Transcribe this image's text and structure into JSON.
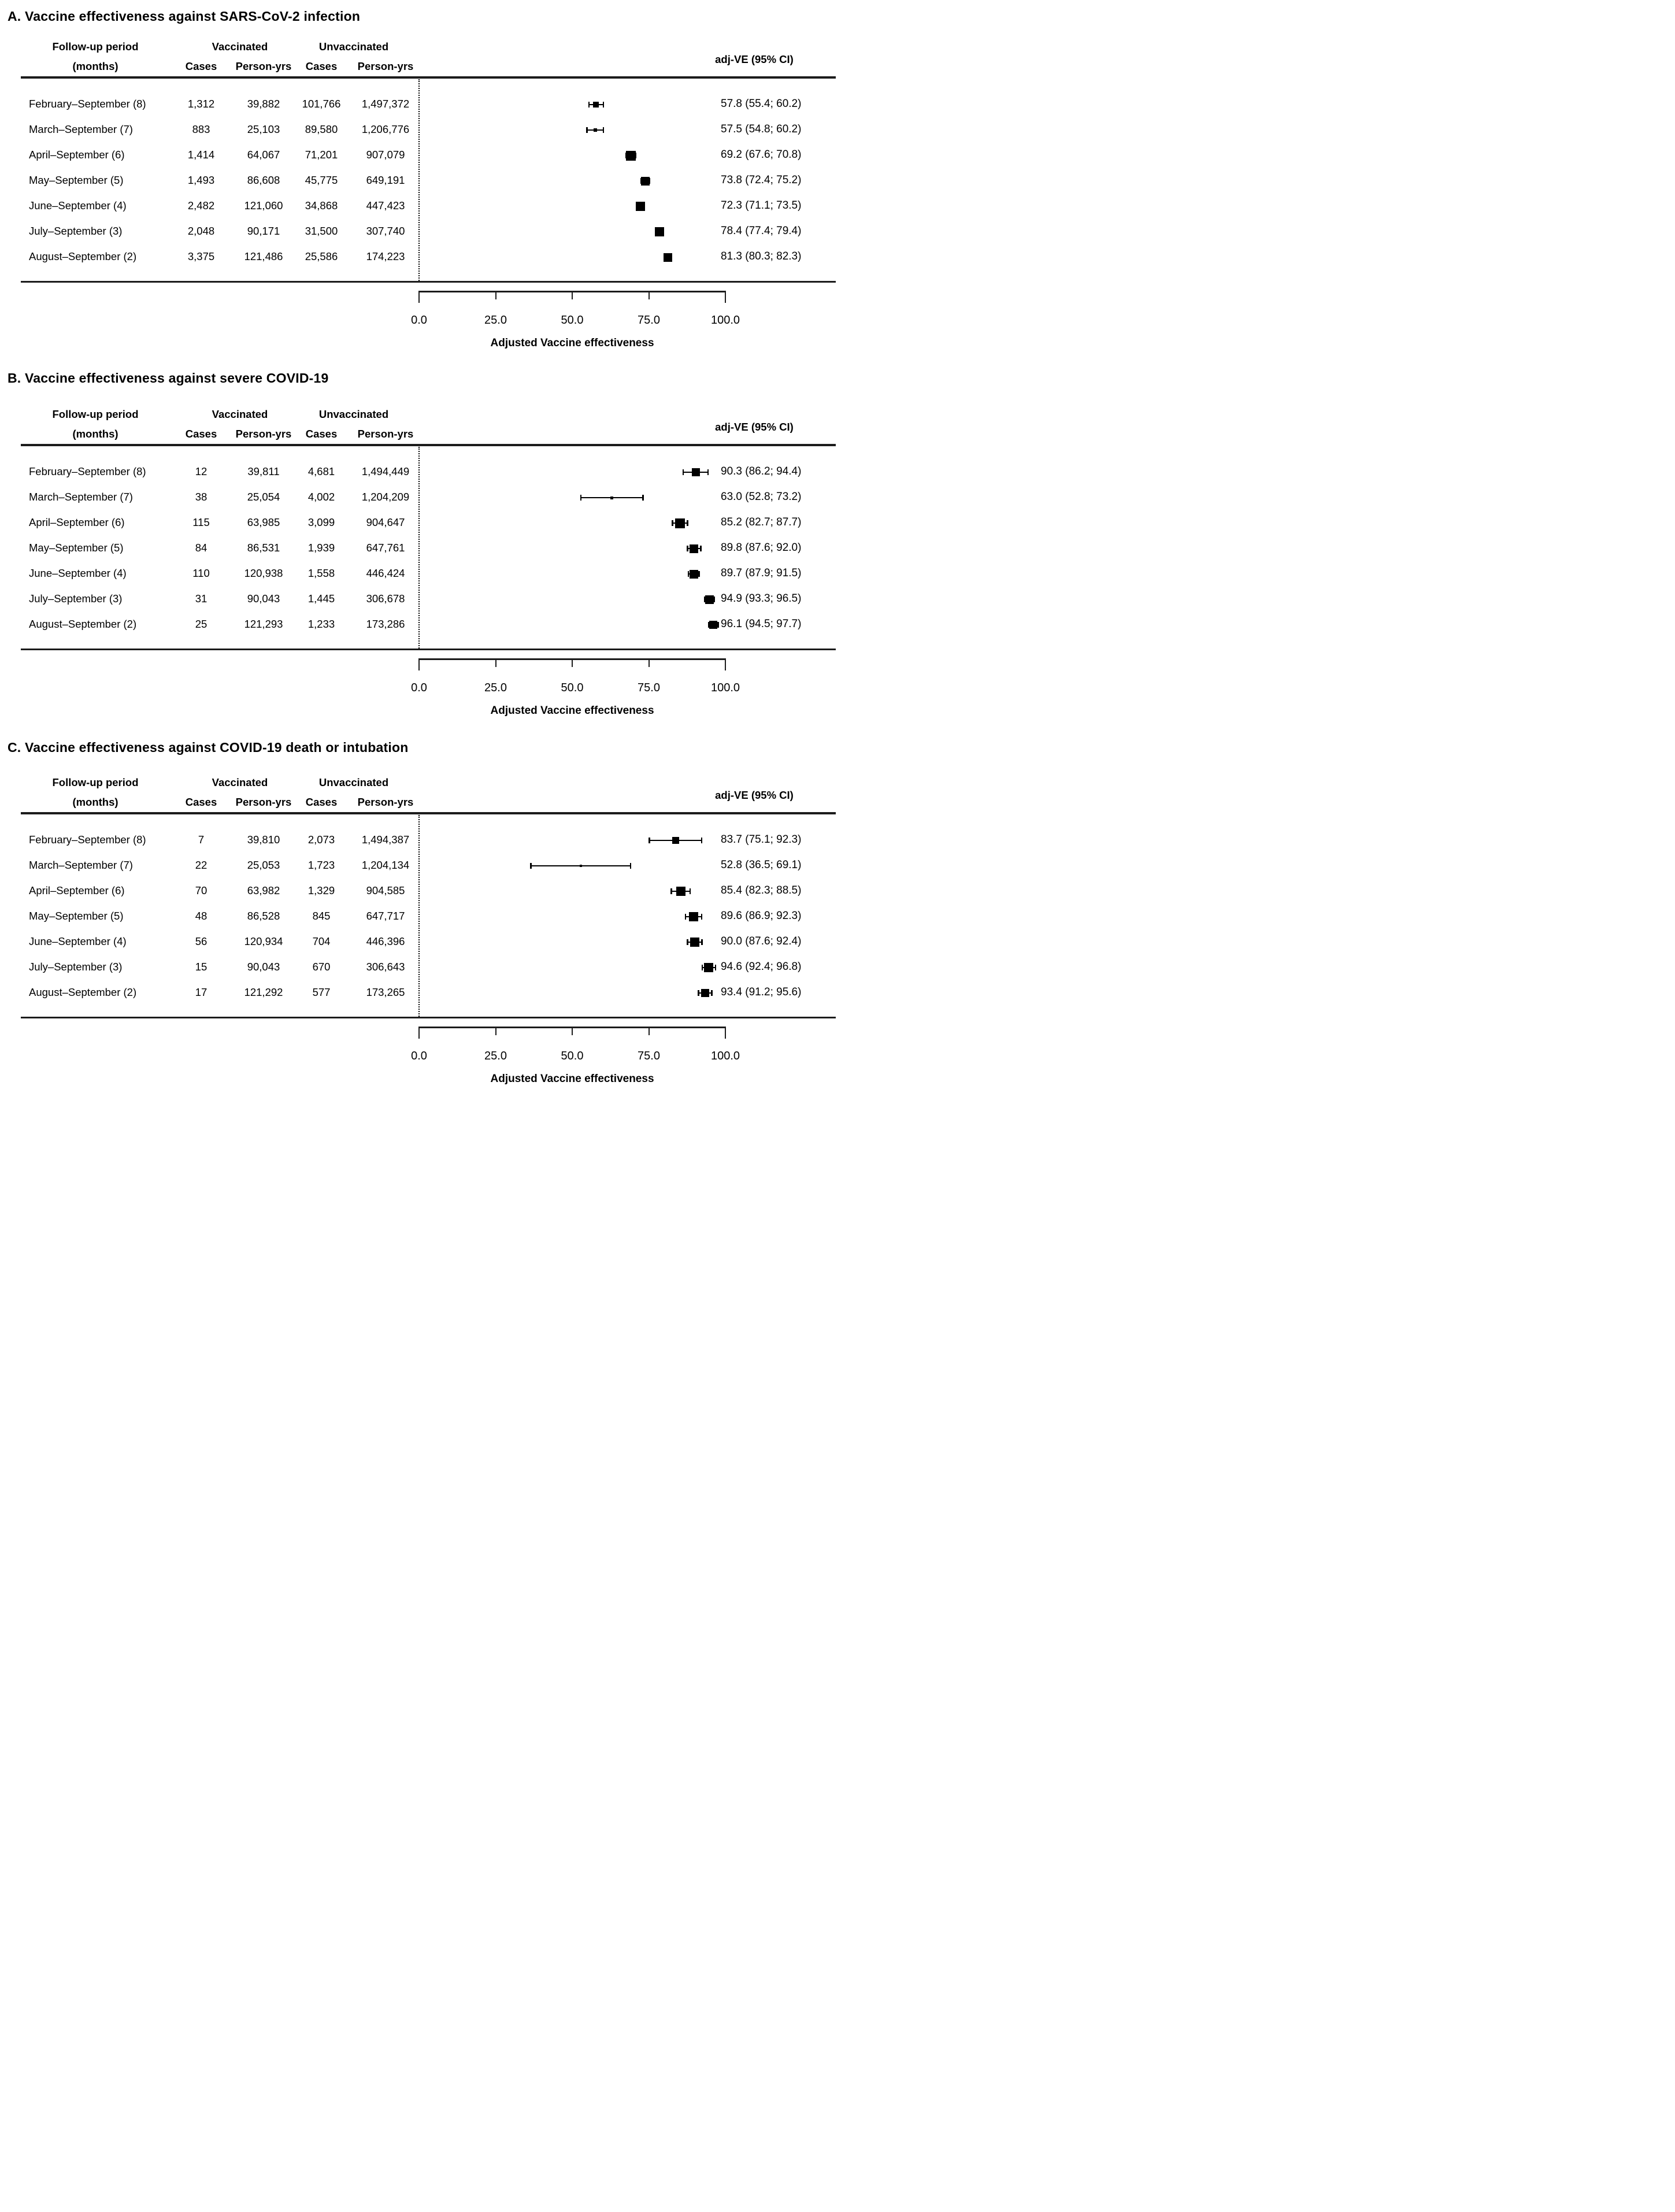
{
  "figure": {
    "background": "#ffffff",
    "ink_color": "#000000",
    "headers": {
      "followup_line1": "Follow-up period",
      "followup_line2": "(months)",
      "vaccinated_group": "Vaccinated",
      "unvaccinated_group": "Unvaccinated",
      "cases": "Cases",
      "person_yrs": "Person-yrs",
      "adj_ve": "adj-VE  (95% CI)"
    },
    "axis": {
      "min": 0,
      "max": 100,
      "tick_values": [
        0,
        25,
        50,
        75,
        100
      ],
      "tick_labels": [
        "0.0",
        "25.0",
        "50.0",
        "75.0",
        "100.0"
      ],
      "xlabel": "Adjusted Vaccine effectiveness"
    }
  },
  "chart_data": [
    {
      "type": "forest",
      "panel": "A",
      "title": "A. Vaccine effectiveness against SARS-CoV-2 infection",
      "xlabel": "Adjusted Vaccine effectiveness",
      "xlim": [
        0,
        100
      ],
      "x_ticks": [
        "0.0",
        "25.0",
        "50.0",
        "75.0",
        "100.0"
      ],
      "legend": "adj-VE  (95% CI)",
      "rows": [
        {
          "period": "February–September (8)",
          "vaccinated_cases": "1,312",
          "vaccinated_person_yrs": "39,882",
          "unvaccinated_cases": "101,766",
          "unvaccinated_person_yrs": "1,497,372",
          "ve": 57.8,
          "ci_low": 55.4,
          "ci_high": 60.2,
          "ve_label": "57.8 (55.4; 60.2)",
          "marker_size": 10
        },
        {
          "period": "March–September (7)",
          "vaccinated_cases": "883",
          "vaccinated_person_yrs": "25,103",
          "unvaccinated_cases": "89,580",
          "unvaccinated_person_yrs": "1,206,776",
          "ve": 57.5,
          "ci_low": 54.8,
          "ci_high": 60.2,
          "ve_label": "57.5 (54.8; 60.2)",
          "marker_size": 6
        },
        {
          "period": "April–September (6)",
          "vaccinated_cases": "1,414",
          "vaccinated_person_yrs": "64,067",
          "unvaccinated_cases": "71,201",
          "unvaccinated_person_yrs": "907,079",
          "ve": 69.2,
          "ci_low": 67.6,
          "ci_high": 70.8,
          "ve_label": "69.2 (67.6; 70.8)",
          "marker_size": 17
        },
        {
          "period": "May–September (5)",
          "vaccinated_cases": "1,493",
          "vaccinated_person_yrs": "86,608",
          "unvaccinated_cases": "45,775",
          "unvaccinated_person_yrs": "649,191",
          "ve": 73.8,
          "ci_low": 72.4,
          "ci_high": 75.2,
          "ve_label": "73.8 (72.4; 75.2)",
          "marker_size": 15
        },
        {
          "period": "June–September (4)",
          "vaccinated_cases": "2,482",
          "vaccinated_person_yrs": "121,060",
          "unvaccinated_cases": "34,868",
          "unvaccinated_person_yrs": "447,423",
          "ve": 72.3,
          "ci_low": 71.1,
          "ci_high": 73.5,
          "ve_label": "72.3 (71.1; 73.5)",
          "marker_size": 16
        },
        {
          "period": "July–September (3)",
          "vaccinated_cases": "2,048",
          "vaccinated_person_yrs": "90,171",
          "unvaccinated_cases": "31,500",
          "unvaccinated_person_yrs": "307,740",
          "ve": 78.4,
          "ci_low": 77.4,
          "ci_high": 79.4,
          "ve_label": "78.4 (77.4; 79.4)",
          "marker_size": 16
        },
        {
          "period": "August–September (2)",
          "vaccinated_cases": "3,375",
          "vaccinated_person_yrs": "121,486",
          "unvaccinated_cases": "25,586",
          "unvaccinated_person_yrs": "174,223",
          "ve": 81.3,
          "ci_low": 80.3,
          "ci_high": 82.3,
          "ve_label": "81.3 (80.3; 82.3)",
          "marker_size": 15
        }
      ]
    },
    {
      "type": "forest",
      "panel": "B",
      "title": "B. Vaccine effectiveness against severe COVID-19",
      "xlabel": "Adjusted Vaccine effectiveness",
      "xlim": [
        0,
        100
      ],
      "x_ticks": [
        "0.0",
        "25.0",
        "50.0",
        "75.0",
        "100.0"
      ],
      "legend": "adj-VE  (95% CI)",
      "rows": [
        {
          "period": "February–September (8)",
          "vaccinated_cases": "12",
          "vaccinated_person_yrs": "39,811",
          "unvaccinated_cases": "4,681",
          "unvaccinated_person_yrs": "1,494,449",
          "ve": 90.3,
          "ci_low": 86.2,
          "ci_high": 94.4,
          "ve_label": "90.3 (86.2; 94.4)",
          "marker_size": 14
        },
        {
          "period": "March–September (7)",
          "vaccinated_cases": "38",
          "vaccinated_person_yrs": "25,054",
          "unvaccinated_cases": "4,002",
          "unvaccinated_person_yrs": "1,204,209",
          "ve": 63.0,
          "ci_low": 52.8,
          "ci_high": 73.2,
          "ve_label": "63.0 (52.8; 73.2)",
          "marker_size": 5
        },
        {
          "period": "April–September (6)",
          "vaccinated_cases": "115",
          "vaccinated_person_yrs": "63,985",
          "unvaccinated_cases": "3,099",
          "unvaccinated_person_yrs": "904,647",
          "ve": 85.2,
          "ci_low": 82.7,
          "ci_high": 87.7,
          "ve_label": "85.2 (82.7; 87.7)",
          "marker_size": 17
        },
        {
          "period": "May–September (5)",
          "vaccinated_cases": "84",
          "vaccinated_person_yrs": "86,531",
          "unvaccinated_cases": "1,939",
          "unvaccinated_person_yrs": "647,761",
          "ve": 89.8,
          "ci_low": 87.6,
          "ci_high": 92.0,
          "ve_label": "89.8 (87.6; 92.0)",
          "marker_size": 15
        },
        {
          "period": "June–September (4)",
          "vaccinated_cases": "110",
          "vaccinated_person_yrs": "120,938",
          "unvaccinated_cases": "1,558",
          "unvaccinated_person_yrs": "446,424",
          "ve": 89.7,
          "ci_low": 87.9,
          "ci_high": 91.5,
          "ve_label": "89.7 (87.9; 91.5)",
          "marker_size": 15
        },
        {
          "period": "July–September (3)",
          "vaccinated_cases": "31",
          "vaccinated_person_yrs": "90,043",
          "unvaccinated_cases": "1,445",
          "unvaccinated_person_yrs": "306,678",
          "ve": 94.9,
          "ci_low": 93.3,
          "ci_high": 96.5,
          "ve_label": "94.9 (93.3; 96.5)",
          "marker_size": 15
        },
        {
          "period": "August–September (2)",
          "vaccinated_cases": "25",
          "vaccinated_person_yrs": "121,293",
          "unvaccinated_cases": "1,233",
          "unvaccinated_person_yrs": "173,286",
          "ve": 96.1,
          "ci_low": 94.5,
          "ci_high": 97.7,
          "ve_label": "96.1 (94.5; 97.7)",
          "marker_size": 14
        }
      ]
    },
    {
      "type": "forest",
      "panel": "C",
      "title": "C. Vaccine effectiveness against COVID-19 death or intubation",
      "xlabel": "Adjusted Vaccine effectiveness",
      "xlim": [
        0,
        100
      ],
      "x_ticks": [
        "0.0",
        "25.0",
        "50.0",
        "75.0",
        "100.0"
      ],
      "legend": "adj-VE  (95% CI)",
      "rows": [
        {
          "period": "February–September (8)",
          "vaccinated_cases": "7",
          "vaccinated_person_yrs": "39,810",
          "unvaccinated_cases": "2,073",
          "unvaccinated_person_yrs": "1,494,387",
          "ve": 83.7,
          "ci_low": 75.1,
          "ci_high": 92.3,
          "ve_label": "83.7 (75.1; 92.3)",
          "marker_size": 12
        },
        {
          "period": "March–September (7)",
          "vaccinated_cases": "22",
          "vaccinated_person_yrs": "25,053",
          "unvaccinated_cases": "1,723",
          "unvaccinated_person_yrs": "1,204,134",
          "ve": 52.8,
          "ci_low": 36.5,
          "ci_high": 69.1,
          "ve_label": "52.8 (36.5; 69.1)",
          "marker_size": 4
        },
        {
          "period": "April–September (6)",
          "vaccinated_cases": "70",
          "vaccinated_person_yrs": "63,982",
          "unvaccinated_cases": "1,329",
          "unvaccinated_person_yrs": "904,585",
          "ve": 85.4,
          "ci_low": 82.3,
          "ci_high": 88.5,
          "ve_label": "85.4 (82.3; 88.5)",
          "marker_size": 16
        },
        {
          "period": "May–September (5)",
          "vaccinated_cases": "48",
          "vaccinated_person_yrs": "86,528",
          "unvaccinated_cases": "845",
          "unvaccinated_person_yrs": "647,717",
          "ve": 89.6,
          "ci_low": 86.9,
          "ci_high": 92.3,
          "ve_label": "89.6 (86.9; 92.3)",
          "marker_size": 16
        },
        {
          "period": "June–September (4)",
          "vaccinated_cases": "56",
          "vaccinated_person_yrs": "120,934",
          "unvaccinated_cases": "704",
          "unvaccinated_person_yrs": "446,396",
          "ve": 90.0,
          "ci_low": 87.6,
          "ci_high": 92.4,
          "ve_label": "90.0 (87.6; 92.4)",
          "marker_size": 16
        },
        {
          "period": "July–September (3)",
          "vaccinated_cases": "15",
          "vaccinated_person_yrs": "90,043",
          "unvaccinated_cases": "670",
          "unvaccinated_person_yrs": "306,643",
          "ve": 94.6,
          "ci_low": 92.4,
          "ci_high": 96.8,
          "ve_label": "94.6 (92.4; 96.8)",
          "marker_size": 16
        },
        {
          "period": "August–September (2)",
          "vaccinated_cases": "17",
          "vaccinated_person_yrs": "121,292",
          "unvaccinated_cases": "577",
          "unvaccinated_person_yrs": "173,265",
          "ve": 93.4,
          "ci_low": 91.2,
          "ci_high": 95.6,
          "ve_label": "93.4 (91.2; 95.6)",
          "marker_size": 14
        }
      ]
    }
  ]
}
